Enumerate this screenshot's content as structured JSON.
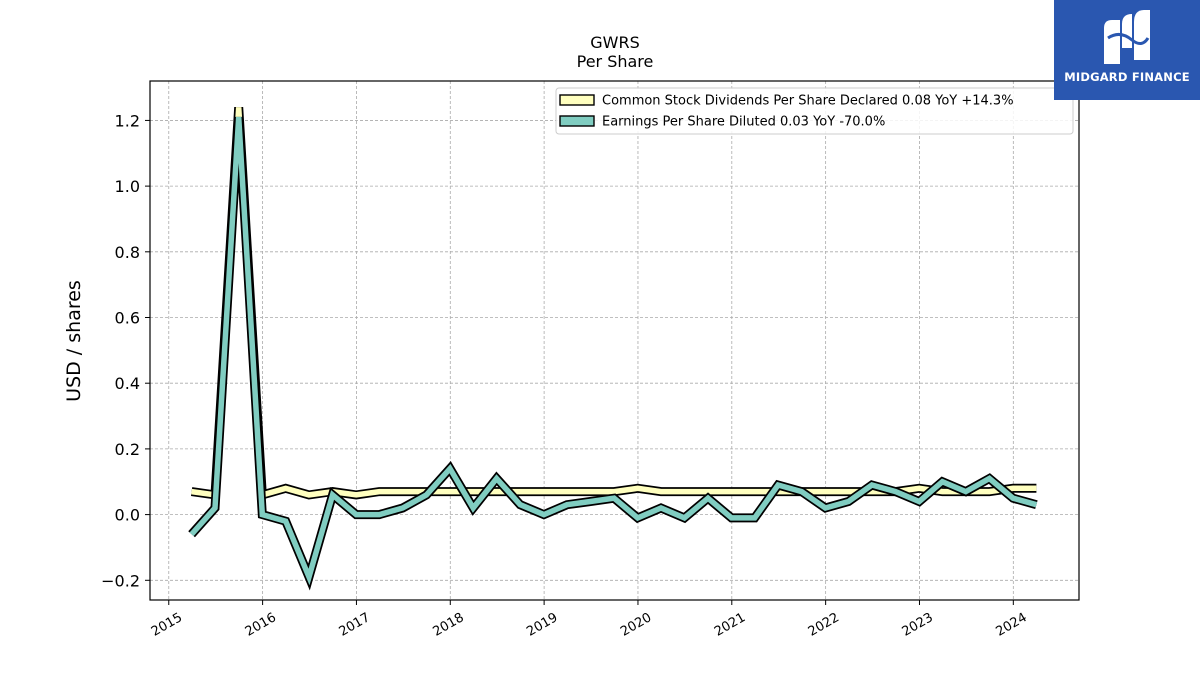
{
  "brand": {
    "name": "MIDGARD FINANCE",
    "logo_icon": "midgard-finance-logo-icon",
    "color": "#2a57b0"
  },
  "chart_data": {
    "type": "area",
    "title": "GWRS",
    "subtitle": "Per  Share",
    "xlabel": "",
    "ylabel": "USD / shares",
    "ylim": [
      -0.26,
      1.32
    ],
    "xlim": [
      2014.8,
      2024.7
    ],
    "yticks": [
      -0.2,
      0.0,
      0.2,
      0.4,
      0.6,
      0.8,
      1.0,
      1.2
    ],
    "ytick_labels": [
      "−0.2",
      "0.0",
      "0.2",
      "0.4",
      "0.6",
      "0.8",
      "1.0",
      "1.2"
    ],
    "xticks": [
      "2015",
      "2016",
      "2017",
      "2018",
      "2019",
      "2020",
      "2021",
      "2022",
      "2023",
      "2024"
    ],
    "grid": true,
    "legend_position": "top-right",
    "series": [
      {
        "name": "Common Stock Dividends Per Share Declared  0.08 YoY +14.3%",
        "color": "#ffffbf",
        "x": [
          "2015-03-31",
          "2015-06-30",
          "2015-09-30",
          "2015-12-31",
          "2016-03-31",
          "2016-06-30",
          "2016-09-30",
          "2016-12-31",
          "2017-03-31",
          "2017-06-30",
          "2017-09-30",
          "2017-12-31",
          "2018-03-31",
          "2018-06-30",
          "2018-09-30",
          "2018-12-31",
          "2019-03-31",
          "2019-06-30",
          "2019-09-30",
          "2019-12-31",
          "2020-03-31",
          "2020-06-30",
          "2020-09-30",
          "2020-12-31",
          "2021-03-31",
          "2021-06-30",
          "2021-09-30",
          "2021-12-31",
          "2022-03-31",
          "2022-06-30",
          "2022-09-30",
          "2022-12-31",
          "2023-03-31",
          "2023-06-30",
          "2023-09-30",
          "2023-12-31",
          "2024-03-31"
        ],
        "values": [
          0.07,
          0.06,
          1.24,
          0.06,
          0.08,
          0.06,
          0.07,
          0.06,
          0.07,
          0.07,
          0.07,
          0.07,
          0.07,
          0.07,
          0.07,
          0.07,
          0.07,
          0.07,
          0.07,
          0.08,
          0.07,
          0.07,
          0.07,
          0.07,
          0.07,
          0.07,
          0.07,
          0.07,
          0.07,
          0.07,
          0.07,
          0.08,
          0.07,
          0.07,
          0.07,
          0.08,
          0.08
        ]
      },
      {
        "name": "Earnings Per Share Diluted  0.03 YoY -70.0%",
        "color": "#80cdc1",
        "x": [
          "2015-03-31",
          "2015-06-30",
          "2015-09-30",
          "2015-12-31",
          "2016-03-31",
          "2016-06-30",
          "2016-09-30",
          "2016-12-31",
          "2017-03-31",
          "2017-06-30",
          "2017-09-30",
          "2017-12-31",
          "2018-03-31",
          "2018-06-30",
          "2018-09-30",
          "2018-12-31",
          "2019-03-31",
          "2019-06-30",
          "2019-09-30",
          "2019-12-31",
          "2020-03-31",
          "2020-06-30",
          "2020-09-30",
          "2020-12-31",
          "2021-03-31",
          "2021-06-30",
          "2021-09-30",
          "2021-12-31",
          "2022-03-31",
          "2022-06-30",
          "2022-09-30",
          "2022-12-31",
          "2023-03-31",
          "2023-06-30",
          "2023-09-30",
          "2023-12-31",
          "2024-03-31"
        ],
        "values": [
          -0.06,
          0.02,
          1.21,
          0.0,
          -0.02,
          -0.19,
          0.06,
          0.0,
          0.0,
          0.02,
          0.06,
          0.14,
          0.02,
          0.11,
          0.03,
          0.0,
          0.03,
          0.04,
          0.05,
          -0.01,
          0.02,
          -0.01,
          0.05,
          -0.01,
          -0.01,
          0.09,
          0.07,
          0.02,
          0.04,
          0.09,
          0.07,
          0.04,
          0.1,
          0.07,
          0.11,
          0.05,
          0.03
        ]
      }
    ]
  }
}
